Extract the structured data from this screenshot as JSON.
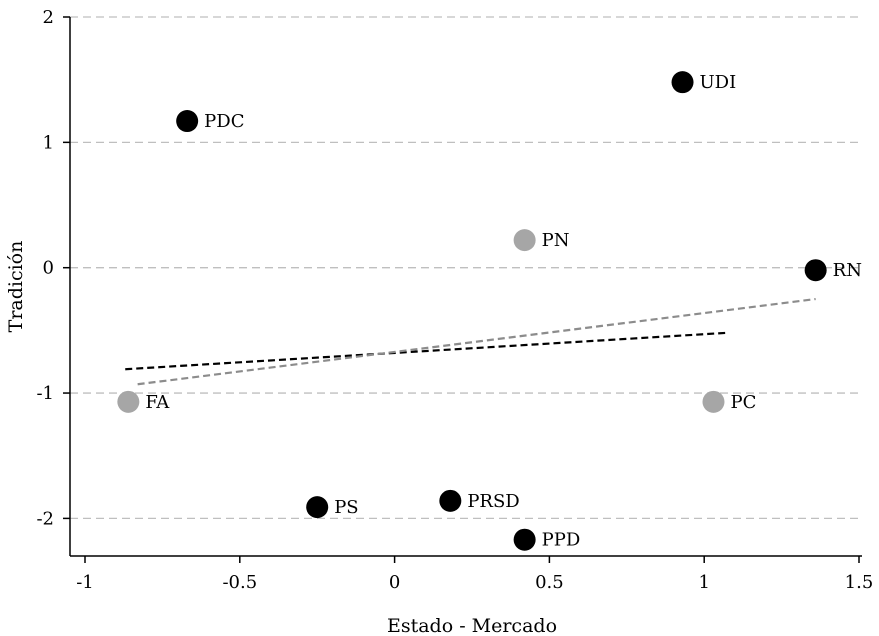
{
  "chart_data": {
    "type": "scatter",
    "title": "",
    "xlabel": "Estado - Mercado",
    "ylabel": "Tradición",
    "xlim": [
      -1,
      1.5
    ],
    "ylim": [
      -2.3,
      2
    ],
    "x_ticks": [
      -1,
      -0.5,
      0,
      0.5,
      1,
      1.5
    ],
    "y_ticks": [
      2,
      1,
      0,
      -1,
      -2
    ],
    "grid": "horizontal dashed",
    "colors": {
      "black_points": "#000000",
      "gray_points": "#a6a6a6",
      "black_fit": "#000000",
      "gray_fit": "#8c8c8c",
      "grid": "#bfbfbf"
    },
    "points": [
      {
        "label": "PDC",
        "x": -0.67,
        "y": 1.17,
        "color": "black"
      },
      {
        "label": "UDI",
        "x": 0.93,
        "y": 1.48,
        "color": "black"
      },
      {
        "label": "PN",
        "x": 0.42,
        "y": 0.22,
        "color": "gray"
      },
      {
        "label": "RN",
        "x": 1.36,
        "y": -0.02,
        "color": "black"
      },
      {
        "label": "FA",
        "x": -0.86,
        "y": -1.07,
        "color": "gray"
      },
      {
        "label": "PC",
        "x": 1.03,
        "y": -1.07,
        "color": "gray"
      },
      {
        "label": "PS",
        "x": -0.25,
        "y": -1.91,
        "color": "black"
      },
      {
        "label": "PRSD",
        "x": 0.18,
        "y": -1.86,
        "color": "black"
      },
      {
        "label": "PPD",
        "x": 0.42,
        "y": -2.17,
        "color": "black"
      }
    ],
    "fit_lines": [
      {
        "color": "black",
        "x": [
          -0.87,
          1.07
        ],
        "y": [
          -0.81,
          -0.52
        ]
      },
      {
        "color": "gray",
        "x": [
          -0.83,
          1.36
        ],
        "y": [
          -0.93,
          -0.25
        ]
      }
    ]
  }
}
